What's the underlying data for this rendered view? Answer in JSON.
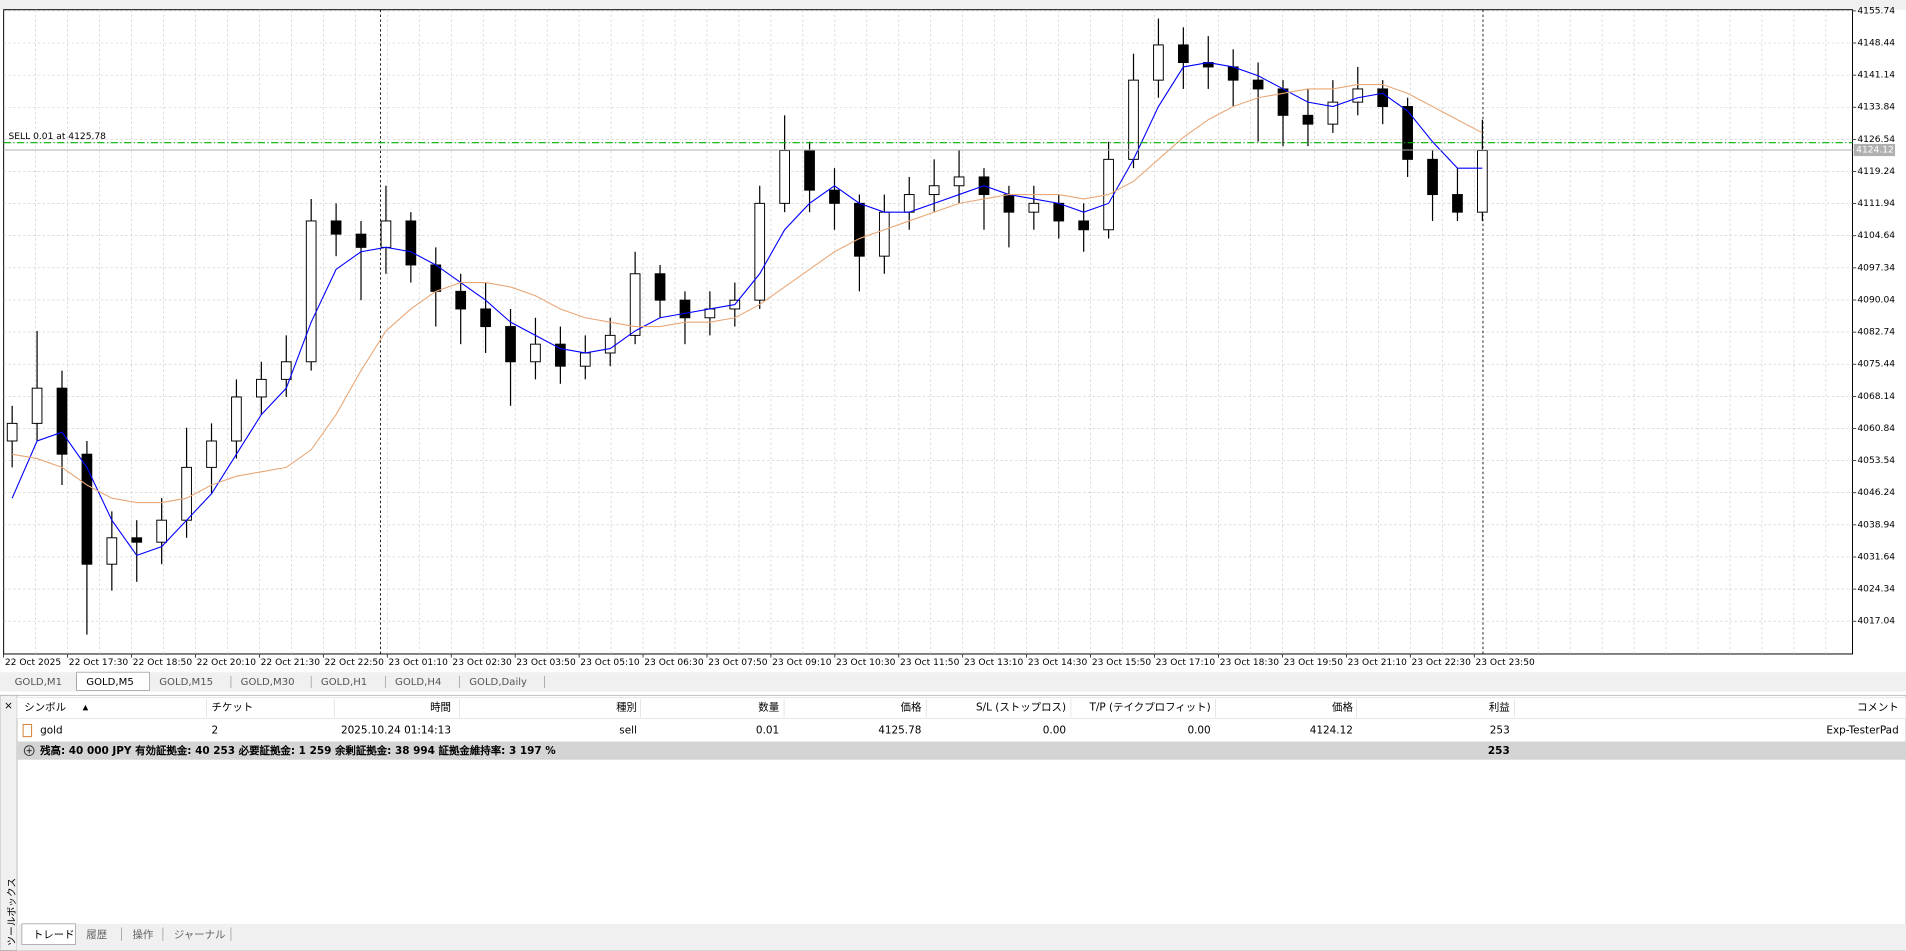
{
  "chart_data": {
    "type": "candlestick",
    "candles": [
      [
        4058,
        4066,
        4052,
        4062
      ],
      [
        4062,
        4083,
        4058,
        4070
      ],
      [
        4070,
        4074,
        4048,
        4055
      ],
      [
        4055,
        4058,
        4014,
        4030
      ],
      [
        4030,
        4042,
        4024,
        4036
      ],
      [
        4036,
        4040,
        4026,
        4035
      ],
      [
        4035,
        4045,
        4030,
        4040
      ],
      [
        4040,
        4061,
        4036,
        4052
      ],
      [
        4052,
        4062,
        4046,
        4058
      ],
      [
        4058,
        4072,
        4054,
        4068
      ],
      [
        4068,
        4076,
        4064,
        4072
      ],
      [
        4072,
        4082,
        4068,
        4076
      ],
      [
        4076,
        4113,
        4074,
        4108
      ],
      [
        4108,
        4112,
        4100,
        4105
      ],
      [
        4105,
        4108,
        4090,
        4102
      ],
      [
        4102,
        4116,
        4096,
        4108
      ],
      [
        4108,
        4110,
        4094,
        4098
      ],
      [
        4098,
        4102,
        4084,
        4092
      ],
      [
        4092,
        4096,
        4080,
        4088
      ],
      [
        4088,
        4094,
        4078,
        4084
      ],
      [
        4084,
        4088,
        4066,
        4076
      ],
      [
        4076,
        4086,
        4072,
        4080
      ],
      [
        4080,
        4084,
        4071,
        4075
      ],
      [
        4075,
        4082,
        4072,
        4078
      ],
      [
        4078,
        4086,
        4075,
        4082
      ],
      [
        4082,
        4101,
        4080,
        4096
      ],
      [
        4096,
        4098,
        4086,
        4090
      ],
      [
        4090,
        4092,
        4080,
        4086
      ],
      [
        4086,
        4092,
        4082,
        4088
      ],
      [
        4088,
        4094,
        4084,
        4090
      ],
      [
        4090,
        4116,
        4088,
        4112
      ],
      [
        4112,
        4132,
        4110,
        4124
      ],
      [
        4124,
        4126,
        4110,
        4115
      ],
      [
        4115,
        4120,
        4106,
        4112
      ],
      [
        4112,
        4114,
        4092,
        4100
      ],
      [
        4100,
        4114,
        4096,
        4110
      ],
      [
        4110,
        4118,
        4106,
        4114
      ],
      [
        4114,
        4122,
        4110,
        4116
      ],
      [
        4116,
        4124,
        4112,
        4118
      ],
      [
        4118,
        4120,
        4106,
        4114
      ],
      [
        4114,
        4116,
        4102,
        4110
      ],
      [
        4110,
        4116,
        4106,
        4112
      ],
      [
        4112,
        4114,
        4104,
        4108
      ],
      [
        4108,
        4112,
        4101,
        4106
      ],
      [
        4106,
        4126,
        4104,
        4122
      ],
      [
        4122,
        4146,
        4120,
        4140
      ],
      [
        4140,
        4154,
        4136,
        4148
      ],
      [
        4148,
        4152,
        4138,
        4144
      ],
      [
        4144,
        4150,
        4138,
        4143
      ],
      [
        4143,
        4147,
        4134,
        4140
      ],
      [
        4140,
        4144,
        4126,
        4138
      ],
      [
        4138,
        4140,
        4125,
        4132
      ],
      [
        4132,
        4138,
        4125,
        4130
      ],
      [
        4130,
        4140,
        4128,
        4135
      ],
      [
        4135,
        4143,
        4132,
        4138
      ],
      [
        4138,
        4140,
        4130,
        4134
      ],
      [
        4134,
        4136,
        4118,
        4122
      ],
      [
        4122,
        4124,
        4108,
        4114
      ],
      [
        4114,
        4120,
        4108,
        4110
      ],
      [
        4110,
        4131,
        4108,
        4124
      ]
    ],
    "series": [
      {
        "color": "#0000ff",
        "values": [
          4045,
          4058,
          4060,
          4052,
          4040,
          4032,
          4034,
          4040,
          4046,
          4055,
          4064,
          4070,
          4085,
          4097,
          4101,
          4102,
          4101,
          4098,
          4094,
          4090,
          4085,
          4082,
          4079,
          4078,
          4079,
          4083,
          4086,
          4087,
          4088,
          4089,
          4096,
          4106,
          4112,
          4116,
          4112,
          4110,
          4110,
          4112,
          4114,
          4116,
          4114,
          4113,
          4112,
          4110,
          4112,
          4122,
          4134,
          4143,
          4144,
          4143,
          4141,
          4138,
          4135,
          4134,
          4136,
          4137,
          4133,
          4126,
          4120,
          4120
        ]
      },
      {
        "color": "#e8a878",
        "values": [
          4055,
          4054,
          4052,
          4048,
          4045,
          4044,
          4044,
          4045,
          4048,
          4050,
          4051,
          4052,
          4056,
          4064,
          4074,
          4083,
          4088,
          4092,
          4094,
          4094,
          4093,
          4091,
          4088,
          4086,
          4085,
          4084,
          4084,
          4085,
          4085,
          4086,
          4089,
          4093,
          4097,
          4101,
          4104,
          4106,
          4108,
          4110,
          4112,
          4113,
          4114,
          4114,
          4114,
          4113,
          4114,
          4117,
          4122,
          4127,
          4131,
          4134,
          4136,
          4137,
          4138,
          4138,
          4139,
          4139,
          4137,
          4134,
          4131,
          4128
        ]
      }
    ],
    "ylim": [
      4009.6,
      4156.0
    ],
    "yticks": [
      4155.74,
      4148.44,
      4141.14,
      4133.84,
      4126.54,
      4119.24,
      4111.94,
      4104.64,
      4097.34,
      4090.04,
      4082.74,
      4075.44,
      4068.14,
      4060.84,
      4053.54,
      4046.24,
      4038.94,
      4031.64,
      4024.34,
      4017.04
    ],
    "xlabels": [
      "22 Oct 2025",
      "22 Oct 17:30",
      "22 Oct 18:50",
      "22 Oct 20:10",
      "22 Oct 21:30",
      "22 Oct 22:50",
      "23 Oct 01:10",
      "23 Oct 02:30",
      "23 Oct 03:50",
      "23 Oct 05:10",
      "23 Oct 06:30",
      "23 Oct 07:50",
      "23 Oct 09:10",
      "23 Oct 10:30",
      "23 Oct 11:50",
      "23 Oct 13:10",
      "23 Oct 14:30",
      "23 Oct 15:50",
      "23 Oct 17:10",
      "23 Oct 18:30",
      "23 Oct 19:50",
      "23 Oct 21:10",
      "23 Oct 22:30",
      "23 Oct 23:50"
    ],
    "grid": true,
    "order_line": {
      "label": "SELL 0.01 at 4125.78",
      "price": 4125.78,
      "color": "#00b000"
    },
    "current_price": 4124.12
  },
  "chart_tabs": {
    "tabs": [
      "GOLD,M1",
      "GOLD,M5",
      "GOLD,M15",
      "GOLD,M30",
      "GOLD,H1",
      "GOLD,H4",
      "GOLD,Daily"
    ],
    "active": 1
  },
  "toolbox": {
    "title": "ツールボックス",
    "headers": [
      "シンボル",
      "チケット",
      "時間",
      "種別",
      "数量",
      "価格",
      "S/L (ストップロス)",
      "T/P (テイクプロフィット)",
      "価格",
      "利益",
      "コメント"
    ],
    "row": [
      "gold",
      "2",
      "2025.10.24 01:14:13",
      "sell",
      "0.01",
      "4125.78",
      "0.00",
      "0.00",
      "4124.12",
      "253",
      "Exp-TesterPad"
    ],
    "summary": "残高: 40 000 JPY  有効証拠金: 40 253  必要証拠金: 1 259  余剰証拠金: 38 994  証拠金維持率: 3 197 %",
    "summary_profit": "253",
    "tabs": [
      "トレード",
      "履歴",
      "操作",
      "ジャーナル"
    ],
    "active": 0
  }
}
